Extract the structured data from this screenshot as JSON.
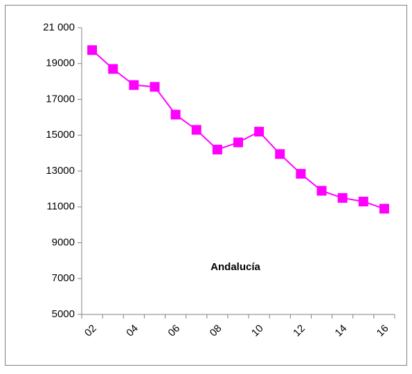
{
  "chart_data": {
    "type": "line",
    "title": "Andalucía",
    "categories": [
      "02",
      null,
      "04",
      null,
      "06",
      null,
      "08",
      null,
      "10",
      null,
      "12",
      null,
      "14",
      null,
      "16"
    ],
    "series": [
      {
        "name": "Andalucía",
        "color": "#ff00ff",
        "values": [
          19750,
          18700,
          17800,
          17700,
          16150,
          15300,
          14200,
          14600,
          15200,
          13950,
          12850,
          11900,
          11500,
          11300,
          10900
        ]
      }
    ],
    "ylim": [
      5000,
      21000
    ],
    "yticks": [
      5000,
      7000,
      9000,
      11000,
      13000,
      15000,
      17000,
      19000,
      {
        "value": 21000,
        "label": "21 000"
      }
    ],
    "grid": false
  }
}
